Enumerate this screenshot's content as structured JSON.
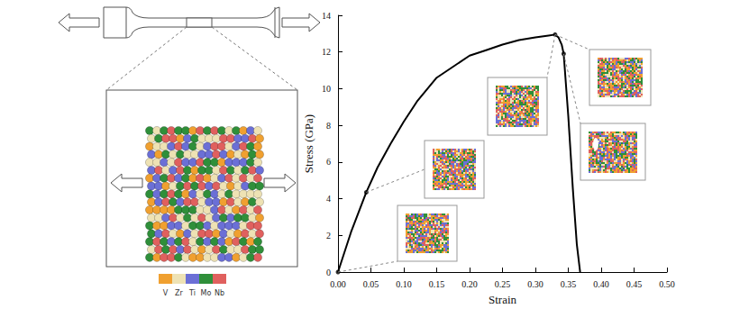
{
  "chart_data": {
    "type": "line",
    "x_label": "Strain",
    "y_label": "Stress (GPa)",
    "xlim": [
      0,
      0.5
    ],
    "xticks": [
      {
        "value": 0,
        "label": "0.00"
      },
      {
        "value": 0.05,
        "label": "0.05"
      },
      {
        "value": 0.1,
        "label": "0.10"
      },
      {
        "value": 0.15,
        "label": "0.15"
      },
      {
        "value": 0.2,
        "label": "0.20"
      },
      {
        "value": 0.25,
        "label": "0.25"
      },
      {
        "value": 0.3,
        "label": "0.30"
      },
      {
        "value": 0.35,
        "label": "0.35"
      },
      {
        "value": 0.4,
        "label": "0.40"
      },
      {
        "value": 0.45,
        "label": "0.45"
      },
      {
        "value": 0.5,
        "label": "0.50"
      }
    ],
    "ylim": [
      0,
      14
    ],
    "yticks": [
      0,
      2,
      4,
      6,
      8,
      10,
      12,
      14
    ],
    "grid": false,
    "series": [
      {
        "type": "line",
        "color": "#000000",
        "line_style": "solid",
        "x": [
          0,
          0.02,
          0.043,
          0.06,
          0.08,
          0.1,
          0.12,
          0.15,
          0.175,
          0.2,
          0.225,
          0.25,
          0.275,
          0.3,
          0.32,
          0.33,
          0.335,
          0.34,
          0.343,
          0.35,
          0.357,
          0.363,
          0.368
        ],
        "values": [
          0,
          2.2,
          4.35,
          5.7,
          7.0,
          8.2,
          9.3,
          10.6,
          11.2,
          11.8,
          12.1,
          12.4,
          12.65,
          12.8,
          12.9,
          12.95,
          12.8,
          12.4,
          11.9,
          8.5,
          4.5,
          1.5,
          0
        ]
      },
      {
        "type": "scatter",
        "color": "#000000",
        "marker": "circle",
        "x": [
          0,
          0.043,
          0.33,
          0.343
        ],
        "values": [
          0,
          4.35,
          12.95,
          11.9
        ]
      }
    ]
  },
  "specimen_legend": [
    {
      "name": "V",
      "color": "#f0a030"
    },
    {
      "name": "Zr",
      "color": "#eee2b4"
    },
    {
      "name": "Ti",
      "color": "#6b6fd6"
    },
    {
      "name": "Mo",
      "color": "#2f8f3a"
    },
    {
      "name": "Nb",
      "color": "#e0605e"
    }
  ]
}
